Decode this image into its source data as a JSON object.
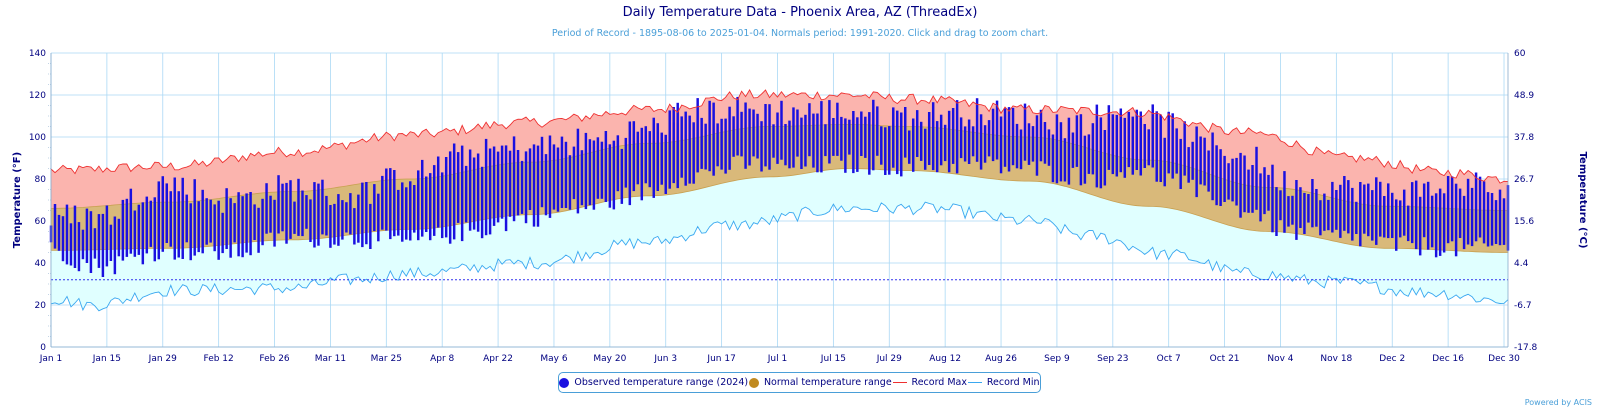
{
  "title": "Daily Temperature Data - Phoenix Area, AZ (ThreadEx)",
  "subtitle": "Period of Record - 1895-08-06 to 2025-01-04. Normals period: 1991-2020. Click and drag to zoom chart.",
  "credit": "Powered by ACIS",
  "legend": {
    "observed": "Observed temperature range (2024)",
    "normal": "Normal temperature range",
    "record_max": "Record Max",
    "record_min": "Record Min"
  },
  "colors": {
    "observed": "#1a10e0",
    "normal": "#c8a050",
    "normal_fill": "#d9b97a",
    "record_max": "#ee3030",
    "record_max_fill": "#fbb4ae",
    "record_min": "#3aa8f0",
    "record_min_fill": "#e0ffff",
    "axis_text": "#000080",
    "grid": "#aad8f5"
  },
  "chart_data": {
    "type": "bar",
    "x_tick_labels": [
      "Jan 1",
      "Jan 15",
      "Jan 29",
      "Feb 12",
      "Feb 26",
      "Mar 11",
      "Mar 25",
      "Apr 8",
      "Apr 22",
      "May 6",
      "May 20",
      "Jun 3",
      "Jun 17",
      "Jul 1",
      "Jul 15",
      "Jul 29",
      "Aug 12",
      "Aug 26",
      "Sep 9",
      "Sep 23",
      "Oct 7",
      "Oct 21",
      "Nov 4",
      "Nov 18",
      "Dec 2",
      "Dec 16",
      "Dec 30"
    ],
    "x_tick_days": [
      0,
      14,
      28,
      42,
      56,
      70,
      84,
      98,
      112,
      126,
      140,
      154,
      168,
      182,
      196,
      210,
      224,
      238,
      252,
      266,
      280,
      294,
      308,
      322,
      336,
      350,
      364
    ],
    "ylabel_left": "Temperature (°F)",
    "ylabel_right": "Temperature (°C)",
    "ylim_f": [
      0,
      140
    ],
    "y_ticks_f": [
      0,
      20,
      40,
      60,
      80,
      100,
      120,
      140
    ],
    "y_ticks_c": [
      "-17.8",
      "-6.7",
      "4.4",
      "15.6",
      "26.7",
      "37.8",
      "48.9",
      "60"
    ],
    "freezing_line_f": 32,
    "days_in_year": 366,
    "normal_high_anchors": [
      [
        0,
        66
      ],
      [
        30,
        69
      ],
      [
        60,
        74
      ],
      [
        90,
        80
      ],
      [
        120,
        88
      ],
      [
        150,
        97
      ],
      [
        180,
        105
      ],
      [
        200,
        106
      ],
      [
        215,
        105
      ],
      [
        245,
        100
      ],
      [
        275,
        89
      ],
      [
        305,
        76
      ],
      [
        335,
        67
      ],
      [
        365,
        65
      ]
    ],
    "normal_low_anchors": [
      [
        0,
        46
      ],
      [
        30,
        47
      ],
      [
        60,
        51
      ],
      [
        90,
        56
      ],
      [
        120,
        63
      ],
      [
        150,
        72
      ],
      [
        180,
        81
      ],
      [
        200,
        85
      ],
      [
        215,
        84
      ],
      [
        245,
        79
      ],
      [
        275,
        67
      ],
      [
        305,
        55
      ],
      [
        335,
        47
      ],
      [
        365,
        45
      ]
    ],
    "record_max_anchors": [
      [
        0,
        84
      ],
      [
        30,
        86
      ],
      [
        60,
        93
      ],
      [
        90,
        101
      ],
      [
        120,
        107
      ],
      [
        150,
        113
      ],
      [
        175,
        120
      ],
      [
        200,
        120
      ],
      [
        215,
        118
      ],
      [
        245,
        113
      ],
      [
        270,
        112
      ],
      [
        300,
        102
      ],
      [
        325,
        90
      ],
      [
        350,
        83
      ],
      [
        365,
        80
      ]
    ],
    "record_min_anchors": [
      [
        0,
        23
      ],
      [
        10,
        20
      ],
      [
        30,
        27
      ],
      [
        60,
        28
      ],
      [
        75,
        32
      ],
      [
        90,
        35
      ],
      [
        120,
        40
      ],
      [
        150,
        50
      ],
      [
        170,
        58
      ],
      [
        200,
        66
      ],
      [
        220,
        66
      ],
      [
        245,
        60
      ],
      [
        260,
        53
      ],
      [
        280,
        44
      ],
      [
        300,
        35
      ],
      [
        320,
        31
      ],
      [
        345,
        26
      ],
      [
        365,
        22
      ]
    ],
    "observed_2024_anchors": [
      [
        0,
        [
          46,
          62
        ]
      ],
      [
        12,
        [
          38,
          62
        ]
      ],
      [
        28,
        [
          46,
          78
        ]
      ],
      [
        45,
        [
          45,
          70
        ]
      ],
      [
        60,
        [
          52,
          76
        ]
      ],
      [
        75,
        [
          52,
          72
        ]
      ],
      [
        90,
        [
          50,
          82
        ]
      ],
      [
        105,
        [
          55,
          92
        ]
      ],
      [
        120,
        [
          62,
          95
        ]
      ],
      [
        135,
        [
          67,
          98
        ]
      ],
      [
        150,
        [
          74,
          104
        ]
      ],
      [
        160,
        [
          82,
          112
        ]
      ],
      [
        175,
        [
          87,
          113
        ]
      ],
      [
        185,
        [
          86,
          112
        ]
      ],
      [
        200,
        [
          87,
          112
        ]
      ],
      [
        215,
        [
          86,
          110
        ]
      ],
      [
        230,
        [
          87,
          112
        ]
      ],
      [
        245,
        [
          85,
          110
        ]
      ],
      [
        255,
        [
          82,
          106
        ]
      ],
      [
        265,
        [
          80,
          110
        ]
      ],
      [
        270,
        [
          86,
          114
        ]
      ],
      [
        280,
        [
          80,
          106
        ]
      ],
      [
        290,
        [
          72,
          96
        ]
      ],
      [
        300,
        [
          65,
          90
        ]
      ],
      [
        310,
        [
          55,
          78
        ]
      ],
      [
        325,
        [
          52,
          76
        ]
      ],
      [
        340,
        [
          48,
          74
        ]
      ],
      [
        355,
        [
          47,
          78
        ]
      ],
      [
        365,
        [
          48,
          72
        ]
      ]
    ]
  }
}
